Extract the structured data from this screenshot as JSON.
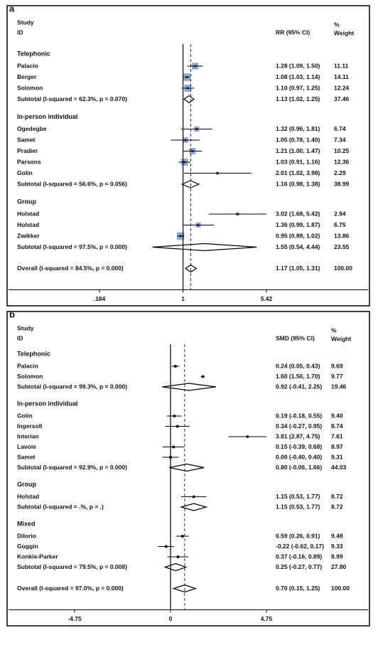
{
  "chart_data": [
    {
      "type": "forest",
      "panel_label": "a",
      "study_header": "Study",
      "id_header": "ID",
      "effect_header": "RR (95% CI)",
      "weight_header": [
        "%",
        "Weight"
      ],
      "log_x": true,
      "xlim": [
        0.184,
        5.42
      ],
      "xticks": [
        {
          "value": 0.184,
          "label": ".184"
        },
        1,
        5.42
      ],
      "null_value": 1,
      "box_color": "#8aa6d8",
      "groups": [
        {
          "name": "Telephonic",
          "studies": [
            {
              "name": "Palacio",
              "estimate": 1.28,
              "lower": 1.09,
              "upper": 1.5,
              "ci_label": "1.28 (1.09, 1.50)",
              "weight": 11.11
            },
            {
              "name": "Berger",
              "estimate": 1.08,
              "lower": 1.03,
              "upper": 1.14,
              "ci_label": "1.08 (1.03, 1.14)",
              "weight": 14.11
            },
            {
              "name": "Solomon",
              "estimate": 1.1,
              "lower": 0.97,
              "upper": 1.25,
              "ci_label": "1.10 (0.97, 1.25)",
              "weight": 12.24
            }
          ],
          "subtotal": {
            "name": "Subtotal  (I-squared = 62.3%, p = 0.070)",
            "estimate": 1.13,
            "lower": 1.02,
            "upper": 1.25,
            "ci_label": "1.13 (1.02, 1.25)",
            "weight": 37.46
          }
        },
        {
          "name": "In-person individual",
          "studies": [
            {
              "name": "Ogedegbe",
              "estimate": 1.32,
              "lower": 0.96,
              "upper": 1.81,
              "ci_label": "1.32 (0.96, 1.81)",
              "weight": 6.74
            },
            {
              "name": "Samet",
              "estimate": 1.05,
              "lower": 0.78,
              "upper": 1.4,
              "ci_label": "1.05 (0.78, 1.40)",
              "weight": 7.34
            },
            {
              "name": "Pradier",
              "estimate": 1.21,
              "lower": 1.0,
              "upper": 1.47,
              "ci_label": "1.21 (1.00, 1.47)",
              "weight": 10.25
            },
            {
              "name": "Parsons",
              "estimate": 1.03,
              "lower": 0.91,
              "upper": 1.16,
              "ci_label": "1.03 (0.91, 1.16)",
              "weight": 12.36
            },
            {
              "name": "Golin",
              "estimate": 2.01,
              "lower": 1.02,
              "upper": 3.98,
              "ci_label": "2.01 (1.02, 3.98)",
              "weight": 2.29
            }
          ],
          "subtotal": {
            "name": "Subtotal  (I-squared = 56.6%, p = 0.056)",
            "estimate": 1.16,
            "lower": 0.98,
            "upper": 1.38,
            "ci_label": "1.16 (0.98, 1.38)",
            "weight": 38.99
          }
        },
        {
          "name": "Group",
          "studies": [
            {
              "name": "Holstad",
              "estimate": 3.02,
              "lower": 1.68,
              "upper": 5.42,
              "ci_label": "3.02 (1.68, 5.42)",
              "weight": 2.94
            },
            {
              "name": "Holstad",
              "estimate": 1.36,
              "lower": 0.99,
              "upper": 1.87,
              "ci_label": "1.36 (0.99, 1.87)",
              "weight": 6.75
            },
            {
              "name": "Zwikker",
              "estimate": 0.95,
              "lower": 0.89,
              "upper": 1.02,
              "ci_label": "0.95 (0.89, 1.02)",
              "weight": 13.86
            }
          ],
          "subtotal": {
            "name": "Subtotal  (I-squared = 97.5%, p = 0.000)",
            "estimate": 1.55,
            "lower": 0.54,
            "upper": 4.44,
            "ci_label": "1.55 (0.54, 4.44)",
            "weight": 23.55
          }
        }
      ],
      "overall": {
        "name": "Overall  (I-squared = 84.5%, p = 0.000)",
        "estimate": 1.17,
        "lower": 1.05,
        "upper": 1.31,
        "ci_label": "1.17 (1.05, 1.31)",
        "weight": 100,
        "weight_label": "100.00"
      }
    },
    {
      "type": "forest",
      "panel_label": "b",
      "study_header": "Study",
      "id_header": "ID",
      "effect_header": "SMD (95% CI)",
      "weight_header": [
        "%",
        "Weight"
      ],
      "log_x": false,
      "xlim": [
        -4.75,
        4.75
      ],
      "xticks": [
        -4.75,
        0,
        4.75
      ],
      "null_value": 0,
      "box_color": "#9a9a9a",
      "groups": [
        {
          "name": "Telephonic",
          "studies": [
            {
              "name": "Palacio",
              "estimate": 0.24,
              "lower": 0.05,
              "upper": 0.43,
              "ci_label": "0.24 (0.05, 0.43)",
              "weight": 9.69
            },
            {
              "name": "Solomon",
              "estimate": 1.6,
              "lower": 1.5,
              "upper": 1.7,
              "ci_label": "1.60 (1.50, 1.70)",
              "weight": 9.77
            }
          ],
          "subtotal": {
            "name": "Subtotal  (I-squared = 99.3%, p = 0.000)",
            "estimate": 0.92,
            "lower": -0.41,
            "upper": 2.25,
            "ci_label": "0.92 (-0.41, 2.25)",
            "weight": 19.46
          }
        },
        {
          "name": "In-person individual",
          "studies": [
            {
              "name": "Golin",
              "estimate": 0.19,
              "lower": -0.18,
              "upper": 0.55,
              "ci_label": "0.19 (-0.18, 0.55)",
              "weight": 9.4,
              "weight_label": "9.40"
            },
            {
              "name": "Ingersoll",
              "estimate": 0.34,
              "lower": -0.27,
              "upper": 0.95,
              "ci_label": "0.34 (-0.27, 0.95)",
              "weight": 8.74
            },
            {
              "name": "Interian",
              "estimate": 3.81,
              "lower": 2.87,
              "upper": 4.75,
              "ci_label": "3.81 (2.87, 4.75)",
              "weight": 7.61
            },
            {
              "name": "Lavoie",
              "estimate": 0.15,
              "lower": -0.39,
              "upper": 0.68,
              "ci_label": "0.15 (-0.39, 0.68)",
              "weight": 8.97
            },
            {
              "name": "Samet",
              "estimate": 0,
              "lower": -0.4,
              "upper": 0.4,
              "ci_label": "0.00 (-0.40, 0.40)",
              "weight": 9.31
            }
          ],
          "subtotal": {
            "name": "Subtotal  (I-squared = 92.9%, p = 0.000)",
            "estimate": 0.8,
            "lower": -0.06,
            "upper": 1.66,
            "ci_label": "0.80 (-0.06, 1.66)",
            "weight": 44.03
          }
        },
        {
          "name": "Group",
          "studies": [
            {
              "name": "Holstad",
              "estimate": 1.15,
              "lower": 0.53,
              "upper": 1.77,
              "ci_label": "1.15 (0.53, 1.77)",
              "weight": 8.72
            }
          ],
          "subtotal": {
            "name": "Subtotal  (I-squared = .%, p = .)",
            "estimate": 1.15,
            "lower": 0.53,
            "upper": 1.77,
            "ci_label": "1.15 (0.53, 1.77)",
            "weight": 8.72
          }
        },
        {
          "name": "Mixed",
          "studies": [
            {
              "name": "DiIorio",
              "estimate": 0.59,
              "lower": 0.26,
              "upper": 0.91,
              "ci_label": "0.59 (0.26, 0.91)",
              "weight": 9.48
            },
            {
              "name": "Goggin",
              "estimate": -0.22,
              "lower": -0.62,
              "upper": 0.17,
              "ci_label": "-0.22 (-0.62, 0.17)",
              "weight": 9.33
            },
            {
              "name": "Konkle-Parker",
              "estimate": 0.37,
              "lower": -0.16,
              "upper": 0.89,
              "ci_label": "0.37 (-0.16, 0.89)",
              "weight": 8.99
            }
          ],
          "subtotal": {
            "name": "Subtotal  (I-squared = 79.5%, p = 0.008)",
            "estimate": 0.25,
            "lower": -0.27,
            "upper": 0.77,
            "ci_label": "0.25 (-0.27, 0.77)",
            "weight": 27.8,
            "weight_label": "27.80"
          }
        }
      ],
      "overall": {
        "name": "Overall  (I-squared = 97.0%, p = 0.000)",
        "estimate": 0.7,
        "lower": 0.15,
        "upper": 1.25,
        "ci_label": "0.70 (0.15, 1.25)",
        "weight": 100,
        "weight_label": "100.00"
      }
    }
  ]
}
